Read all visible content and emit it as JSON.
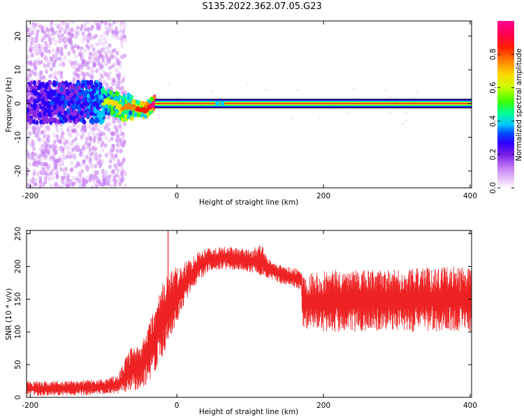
{
  "title": "S135.2022.362.07.05.G23",
  "chart_data": [
    {
      "type": "heatmap",
      "xlabel": "Height of straight line (km)",
      "ylabel": "Frequency (Hz)",
      "xlim": [
        -205,
        402
      ],
      "ylim": [
        -25,
        24.5
      ],
      "xticks": [
        -200,
        0,
        200,
        400
      ],
      "yticks": [
        -20,
        -10,
        0,
        10,
        20
      ],
      "colorbar": {
        "label": "Normalized spectral amplitude",
        "range": [
          0,
          1
        ],
        "ticks": [
          "0.0",
          "0.2",
          "0.4",
          "0.6",
          "0.8"
        ],
        "colormap": [
          "#ffffff",
          "#e7c6f7",
          "#c47cf4",
          "#8a2be2",
          "#2a00ff",
          "#0050ff",
          "#00c8ff",
          "#00ff90",
          "#40ff00",
          "#c8ff00",
          "#ffd800",
          "#ff8000",
          "#ff2000",
          "#ff0050",
          "#ff0090"
        ]
      },
      "profile": {
        "description_points": [
          [
            -200,
            0.4
          ],
          [
            -150,
            0.3
          ],
          [
            -120,
            0.5
          ],
          [
            -100,
            0.2
          ],
          [
            -95,
            0.8
          ],
          [
            -85,
            0.0
          ],
          [
            -75,
            -1.5
          ],
          [
            -65,
            -0.8
          ],
          [
            -55,
            -1.5
          ],
          [
            -45,
            -2.0
          ],
          [
            -40,
            -1.8
          ],
          [
            -35,
            -0.5
          ],
          [
            -30,
            0.0
          ],
          [
            400,
            0.0
          ]
        ],
        "intensity": [
          [
            -205,
            0.25
          ],
          [
            -110,
            0.4
          ],
          [
            -90,
            0.55
          ],
          [
            -60,
            0.65
          ],
          [
            -35,
            0.75
          ],
          [
            -30,
            0.95
          ],
          [
            402,
            0.95
          ]
        ]
      }
    },
    {
      "type": "line",
      "xlabel": "Height of straight line (km)",
      "ylabel": "SNR (10 * v/v)",
      "xlim": [
        -205,
        402
      ],
      "ylim": [
        0,
        255
      ],
      "xticks": [
        -200,
        0,
        200,
        400
      ],
      "yticks": [
        0,
        50,
        100,
        150,
        200,
        250
      ],
      "color": "#ee2222",
      "envelope": [
        {
          "x": -205,
          "low": 2,
          "high": 25
        },
        {
          "x": -150,
          "low": 3,
          "high": 25
        },
        {
          "x": -100,
          "low": 4,
          "high": 28
        },
        {
          "x": -80,
          "low": 5,
          "high": 35
        },
        {
          "x": -70,
          "low": 8,
          "high": 60
        },
        {
          "x": -60,
          "low": 10,
          "high": 80
        },
        {
          "x": -50,
          "low": 12,
          "high": 75
        },
        {
          "x": -40,
          "low": 20,
          "high": 110
        },
        {
          "x": -30,
          "low": 40,
          "high": 140
        },
        {
          "x": -20,
          "low": 60,
          "high": 175
        },
        {
          "x": -12,
          "low": 85,
          "high": 190
        },
        {
          "x": 0,
          "low": 110,
          "high": 200
        },
        {
          "x": 10,
          "low": 140,
          "high": 205
        },
        {
          "x": 25,
          "low": 170,
          "high": 220
        },
        {
          "x": 40,
          "low": 190,
          "high": 230
        },
        {
          "x": 60,
          "low": 195,
          "high": 230
        },
        {
          "x": 80,
          "low": 195,
          "high": 230
        },
        {
          "x": 100,
          "low": 190,
          "high": 225
        },
        {
          "x": 115,
          "low": 185,
          "high": 235
        },
        {
          "x": 130,
          "low": 180,
          "high": 205
        },
        {
          "x": 150,
          "low": 170,
          "high": 200
        },
        {
          "x": 170,
          "low": 165,
          "high": 195
        },
        {
          "x": 171,
          "low": 105,
          "high": 190
        },
        {
          "x": 200,
          "low": 100,
          "high": 195
        },
        {
          "x": 250,
          "low": 100,
          "high": 195
        },
        {
          "x": 300,
          "low": 100,
          "high": 195
        },
        {
          "x": 350,
          "low": 100,
          "high": 200
        },
        {
          "x": 402,
          "low": 100,
          "high": 200
        }
      ],
      "spike": {
        "x": -12,
        "value": 255
      }
    }
  ]
}
